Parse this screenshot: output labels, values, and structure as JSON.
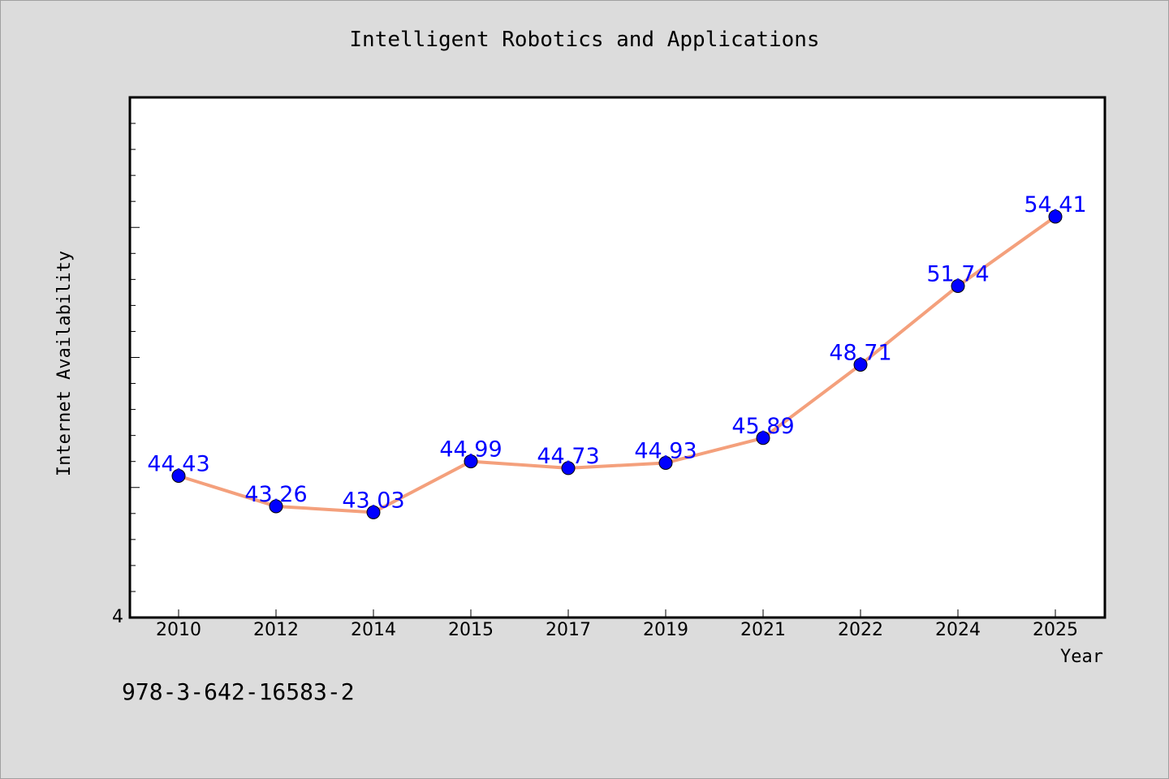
{
  "chart_data": {
    "type": "line",
    "title": "Intelligent Robotics and Applications",
    "xlabel": "Year",
    "ylabel": "Internet Availability",
    "categories": [
      "2010",
      "2012",
      "2014",
      "2015",
      "2017",
      "2019",
      "2021",
      "2022",
      "2024",
      "2025"
    ],
    "series": [
      {
        "values": [
          44.43,
          43.26,
          43.03,
          44.99,
          44.73,
          44.93,
          45.89,
          48.71,
          51.74,
          54.41
        ],
        "labels": [
          "44.43",
          "43.26",
          "43.03",
          "44.99",
          "44.73",
          "44.93",
          "45.89",
          "48.71",
          "51.74",
          "54.41"
        ],
        "line_color": "#f4a07c",
        "marker_color": "#0000ff",
        "label_color": "#0000ff"
      }
    ],
    "ylim": [
      38.98,
      59.0
    ],
    "y_tick_labels": [
      "4"
    ],
    "grid": false,
    "legend": "none"
  },
  "footer": {
    "isbn": "978-3-642-16583-2"
  }
}
